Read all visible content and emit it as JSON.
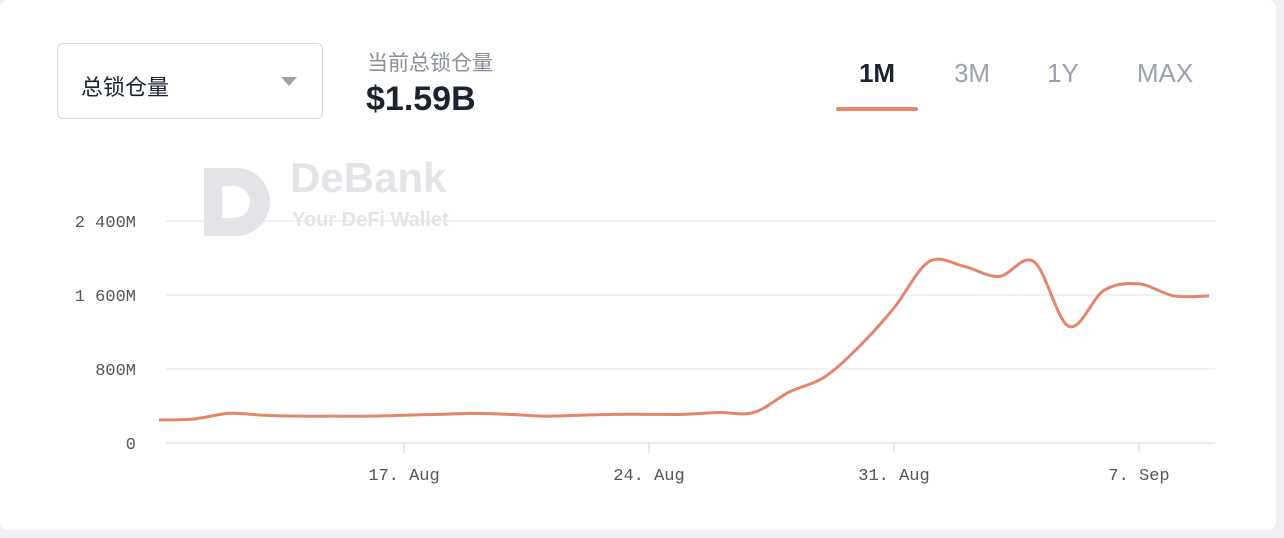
{
  "dropdown": {
    "label": "总锁仓量"
  },
  "summary": {
    "label": "当前总锁仓量",
    "value": "$1.59B"
  },
  "tabs": [
    {
      "label": "1M",
      "active": true
    },
    {
      "label": "3M"
    },
    {
      "label": "1Y"
    },
    {
      "label": "MAX"
    }
  ],
  "watermark": {
    "name": "DeBank",
    "tagline": "Your DeFi Wallet"
  },
  "chart_data": {
    "type": "line",
    "categories": [
      null,
      null,
      null,
      null,
      null,
      null,
      null,
      "17. Aug",
      null,
      null,
      null,
      null,
      null,
      null,
      "24. Aug",
      null,
      null,
      null,
      null,
      null,
      null,
      "31. Aug",
      null,
      null,
      null,
      null,
      null,
      null,
      "7. Sep",
      null,
      null
    ],
    "values": [
      250000000,
      260000000,
      320000000,
      300000000,
      290000000,
      290000000,
      290000000,
      300000000,
      310000000,
      320000000,
      310000000,
      290000000,
      300000000,
      310000000,
      310000000,
      310000000,
      330000000,
      330000000,
      550000000,
      710000000,
      1040000000,
      1460000000,
      1960000000,
      1910000000,
      1800000000,
      1960000000,
      1260000000,
      1650000000,
      1720000000,
      1590000000,
      1590000000
    ],
    "color": "#e5866b",
    "ylim": [
      0,
      2400000000
    ],
    "yticks": [
      {
        "value": 0,
        "label": "0"
      },
      {
        "value": 800000000,
        "label": "800M"
      },
      {
        "value": 1600000000,
        "label": "1 600M"
      },
      {
        "value": 2400000000,
        "label": "2 400M"
      }
    ],
    "grid": true
  }
}
